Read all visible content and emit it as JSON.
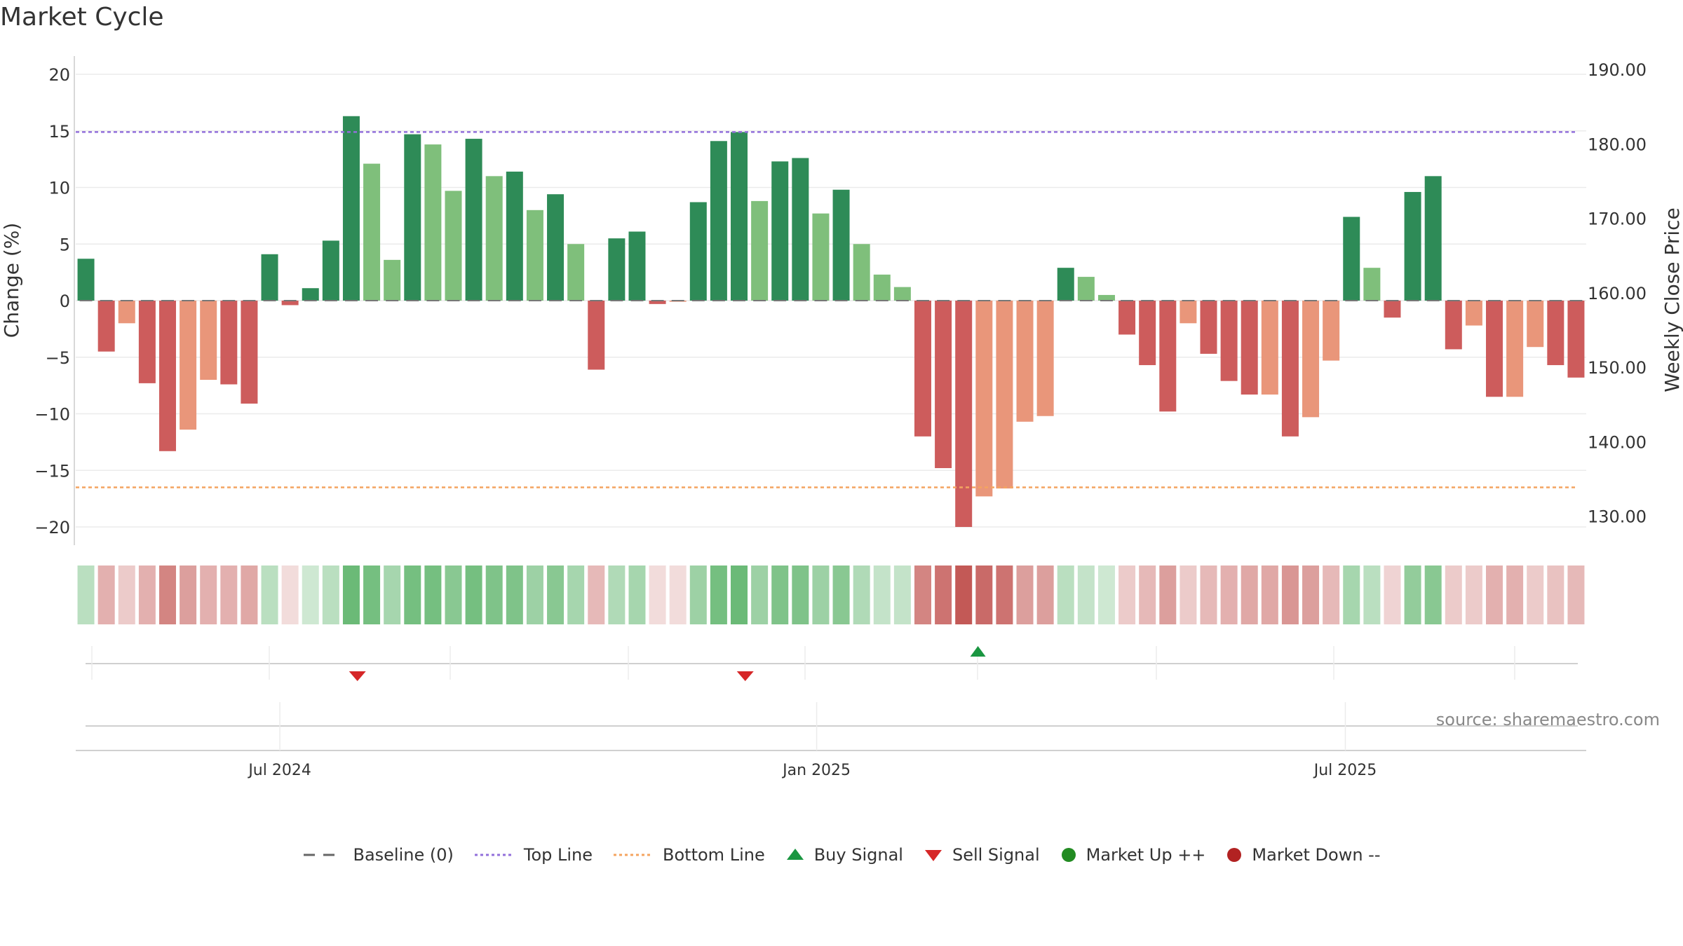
{
  "title": "Market Cycle",
  "source": "source: sharemaestro.com",
  "colors": {
    "up_strong": "#2e8b57",
    "up_light": "#7fbf7b",
    "down_strong": "#cd5c5c",
    "down_light": "#e9967a",
    "top_line": "#9370db",
    "bottom_line": "#f4a460",
    "buy": "#1a9641",
    "sell": "#d62728",
    "market_up": "#228b22",
    "market_down": "#b22222"
  },
  "legend": {
    "baseline": "Baseline (0)",
    "top_line": "Top Line",
    "bottom_line": "Bottom Line",
    "buy": "Buy Signal",
    "sell": "Sell Signal",
    "market_up": "Market Up ++",
    "market_down": "Market Down --"
  },
  "chart_data": {
    "type": "bar",
    "title": "Market Cycle",
    "ylabel": "Change (%)",
    "ylabel_right": "Weekly Close Price",
    "ylim": [
      -21.5,
      21.5
    ],
    "yticks": [
      20,
      15,
      10,
      5,
      0,
      -5,
      -10,
      -15,
      -20
    ],
    "ytick_labels": [
      "20",
      "15",
      "10",
      "5",
      "0",
      "−5",
      "−10",
      "−15",
      "−20"
    ],
    "y2ticks": [
      "190.00",
      "180.00",
      "170.00",
      "160.00",
      "150.00",
      "140.00",
      "130.00"
    ],
    "top_line": 14.9,
    "bottom_line": -16.5,
    "xtick_labels": [
      {
        "label": "Jul 2024",
        "index": 9.5
      },
      {
        "label": "Jan 2025",
        "index": 35.8
      },
      {
        "label": "Jul 2025",
        "index": 61.7
      }
    ],
    "values": [
      3.7,
      -4.5,
      -2.0,
      -7.3,
      -13.3,
      -11.4,
      -7.0,
      -7.4,
      -9.1,
      4.1,
      -0.4,
      1.1,
      5.3,
      16.3,
      12.1,
      3.6,
      14.7,
      13.8,
      9.7,
      14.3,
      11.0,
      11.4,
      8.0,
      9.4,
      5.0,
      -6.1,
      5.5,
      6.1,
      -0.3,
      -0.1,
      8.7,
      14.1,
      14.9,
      8.8,
      12.3,
      12.6,
      7.7,
      9.8,
      5.0,
      2.3,
      1.2,
      -12.0,
      -14.8,
      -20.0,
      -17.3,
      -16.6,
      -10.7,
      -10.2,
      2.9,
      2.1,
      0.5,
      -3.0,
      -5.7,
      -9.8,
      -2.0,
      -4.7,
      -7.1,
      -8.3,
      -8.3,
      -12.0,
      -10.3,
      -5.3,
      7.4,
      2.9,
      -1.5,
      9.6,
      11.0,
      -4.3,
      -2.2,
      -8.5,
      -8.5,
      -4.1,
      -5.7,
      -6.8
    ],
    "shade": [
      "s",
      "s",
      "l",
      "s",
      "s",
      "l",
      "l",
      "s",
      "s",
      "s",
      "s",
      "s",
      "s",
      "s",
      "l",
      "l",
      "s",
      "l",
      "l",
      "s",
      "l",
      "s",
      "l",
      "s",
      "l",
      "s",
      "s",
      "s",
      "s",
      "l",
      "s",
      "s",
      "s",
      "l",
      "s",
      "s",
      "l",
      "s",
      "l",
      "l",
      "l",
      "s",
      "s",
      "s",
      "l",
      "l",
      "l",
      "l",
      "s",
      "l",
      "l",
      "s",
      "s",
      "s",
      "l",
      "s",
      "s",
      "s",
      "l",
      "s",
      "l",
      "l",
      "s",
      "l",
      "s",
      "s",
      "s",
      "s",
      "l",
      "s",
      "l",
      "l",
      "s",
      "s"
    ],
    "heat_strength": [
      0.35,
      0.45,
      0.3,
      0.45,
      0.7,
      0.55,
      0.45,
      0.45,
      0.5,
      0.35,
      0.2,
      0.25,
      0.35,
      0.75,
      0.7,
      0.45,
      0.7,
      0.7,
      0.6,
      0.7,
      0.65,
      0.65,
      0.5,
      0.6,
      0.45,
      0.4,
      0.4,
      0.45,
      0.2,
      0.2,
      0.5,
      0.7,
      0.75,
      0.5,
      0.65,
      0.65,
      0.5,
      0.6,
      0.4,
      0.3,
      0.3,
      0.7,
      0.8,
      0.95,
      0.85,
      0.8,
      0.55,
      0.55,
      0.35,
      0.3,
      0.25,
      0.3,
      0.4,
      0.55,
      0.3,
      0.4,
      0.45,
      0.5,
      0.5,
      0.6,
      0.55,
      0.4,
      0.45,
      0.35,
      0.25,
      0.55,
      0.6,
      0.3,
      0.3,
      0.45,
      0.45,
      0.3,
      0.35,
      0.4
    ],
    "buy_signals": [
      43.7
    ],
    "sell_signals": [
      13.3,
      32.3
    ],
    "n_bars": 74
  }
}
